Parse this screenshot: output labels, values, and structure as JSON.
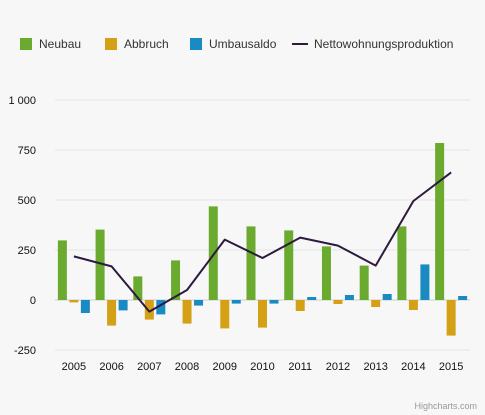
{
  "chart_data": {
    "type": "bar",
    "categories": [
      "2005",
      "2006",
      "2007",
      "2008",
      "2009",
      "2010",
      "2011",
      "2012",
      "2013",
      "2014",
      "2015"
    ],
    "series": [
      {
        "name": "Neubau",
        "type": "bar",
        "color": "#6aaa2e",
        "values": [
          298,
          352,
          118,
          198,
          468,
          368,
          348,
          268,
          172,
          368,
          785
        ]
      },
      {
        "name": "Abbruch",
        "type": "bar",
        "color": "#d4a116",
        "values": [
          -12,
          -128,
          -98,
          -118,
          -142,
          -138,
          -55,
          -20,
          -35,
          -50,
          -178
        ]
      },
      {
        "name": "Umbausaldo",
        "type": "bar",
        "color": "#1a8ac3",
        "values": [
          -65,
          -52,
          -72,
          -28,
          -18,
          -18,
          15,
          25,
          30,
          178,
          20
        ]
      },
      {
        "name": "Nettowohnungsproduktion",
        "type": "line",
        "color": "#2e1a3f",
        "values": [
          218,
          168,
          -58,
          50,
          302,
          210,
          312,
          272,
          172,
          495,
          638
        ]
      }
    ],
    "y_ticks": [
      {
        "value": 1000,
        "label": "1 000"
      },
      {
        "value": 750,
        "label": "750"
      },
      {
        "value": 500,
        "label": "500"
      },
      {
        "value": 250,
        "label": "250"
      },
      {
        "value": 0,
        "label": "0"
      },
      {
        "value": -250,
        "label": "-250"
      }
    ],
    "ylim": [
      -250,
      1000
    ],
    "grid": true,
    "legend_position": "top",
    "credit": "Highcharts.com"
  }
}
